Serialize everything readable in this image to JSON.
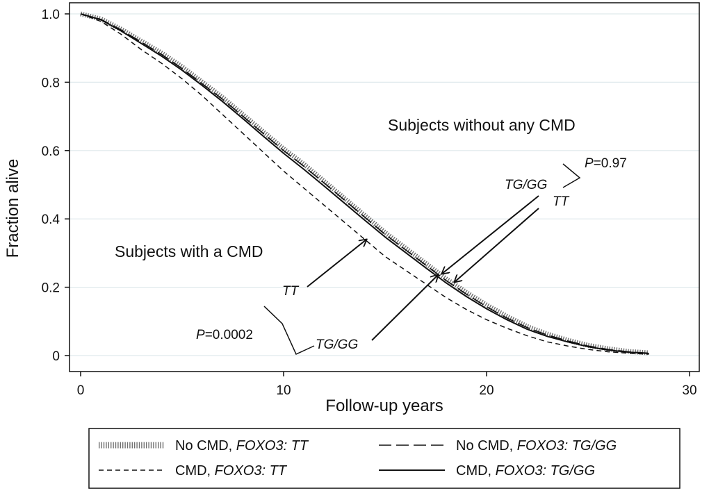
{
  "chart_data": {
    "type": "line",
    "title": "",
    "xlabel": "Follow-up years",
    "ylabel": "Fraction alive",
    "xlim": [
      0,
      30
    ],
    "ylim": [
      0,
      1.0
    ],
    "x_ticks": [
      "0",
      "10",
      "20",
      "30"
    ],
    "y_ticks": [
      "0",
      "0.2",
      "0.4",
      "0.6",
      "0.8",
      "1.0"
    ],
    "grid": true,
    "legend_position": "bottom",
    "x": [
      0,
      1,
      2,
      3,
      4,
      5,
      6,
      7,
      8,
      9,
      10,
      11,
      12,
      13,
      14,
      15,
      16,
      17,
      18,
      19,
      20,
      21,
      22,
      23,
      24,
      25,
      26,
      27,
      28
    ],
    "series": [
      {
        "name": "No CMD, FOXO3: TT",
        "name_plain": "No CMD, ",
        "name_italic": "FOXO3: TT",
        "style": "hatched",
        "values": [
          1.0,
          0.985,
          0.955,
          0.92,
          0.885,
          0.845,
          0.8,
          0.755,
          0.705,
          0.655,
          0.605,
          0.56,
          0.51,
          0.46,
          0.41,
          0.36,
          0.315,
          0.27,
          0.225,
          0.185,
          0.148,
          0.115,
          0.085,
          0.063,
          0.045,
          0.03,
          0.02,
          0.012,
          0.008
        ]
      },
      {
        "name": "No CMD, FOXO3: TG/GG",
        "name_plain": "No CMD, ",
        "name_italic": "FOXO3: TG/GG",
        "style": "longdash",
        "values": [
          1.0,
          0.984,
          0.953,
          0.917,
          0.881,
          0.84,
          0.795,
          0.75,
          0.7,
          0.65,
          0.6,
          0.554,
          0.505,
          0.455,
          0.405,
          0.355,
          0.31,
          0.265,
          0.22,
          0.18,
          0.143,
          0.11,
          0.082,
          0.06,
          0.043,
          0.028,
          0.018,
          0.011,
          0.007
        ]
      },
      {
        "name": "CMD, FOXO3: TT",
        "name_plain": "CMD, ",
        "name_italic": "FOXO3: TT",
        "style": "dash",
        "values": [
          1.0,
          0.978,
          0.94,
          0.895,
          0.855,
          0.81,
          0.76,
          0.705,
          0.65,
          0.595,
          0.54,
          0.49,
          0.44,
          0.39,
          0.34,
          0.29,
          0.25,
          0.21,
          0.17,
          0.135,
          0.105,
          0.08,
          0.058,
          0.04,
          0.028,
          0.018,
          0.011,
          0.007,
          0.004
        ]
      },
      {
        "name": "CMD, FOXO3: TG/GG",
        "name_plain": "CMD, ",
        "name_italic": "FOXO3: TG/GG",
        "style": "solid",
        "values": [
          1.0,
          0.983,
          0.95,
          0.913,
          0.876,
          0.835,
          0.79,
          0.743,
          0.693,
          0.642,
          0.592,
          0.545,
          0.496,
          0.446,
          0.396,
          0.347,
          0.302,
          0.257,
          0.213,
          0.173,
          0.137,
          0.105,
          0.077,
          0.056,
          0.04,
          0.026,
          0.016,
          0.01,
          0.006
        ]
      }
    ],
    "annotations": {
      "without_cmd": "Subjects without any CMD",
      "with_cmd": "Subjects with a CMD",
      "p_without_prefix": "P",
      "p_without_value": "=0.97",
      "p_with_prefix": "P",
      "p_with_value": "=0.0002",
      "label_tggg_upper": "TG/GG",
      "label_tt_upper": "TT",
      "label_tt_lower": "TT",
      "label_tggg_lower": "TG/GG"
    }
  }
}
